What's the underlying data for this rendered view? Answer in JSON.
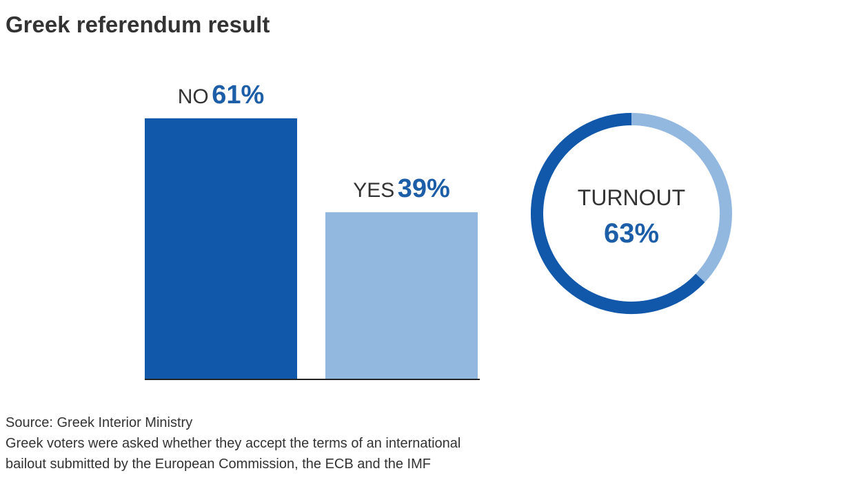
{
  "title": "Greek referendum result",
  "source": "Source: Greek Interior Ministry",
  "note_lines": [
    "Greek voters were asked whether they accept the terms of an international",
    "bailout submitted by the European Commission, the ECB and the IMF"
  ],
  "chart_data": [
    {
      "type": "bar",
      "categories": [
        "NO",
        "YES"
      ],
      "values": [
        61,
        39
      ],
      "value_labels": [
        "61%",
        "39%"
      ],
      "colors": [
        "#1158ab",
        "#93b8e0"
      ]
    },
    {
      "type": "pie",
      "categories": [
        "TURNOUT"
      ],
      "values": [
        63
      ],
      "value_labels": [
        "63%"
      ],
      "color": "#1158ab",
      "track_color": "#93b8e0"
    }
  ]
}
